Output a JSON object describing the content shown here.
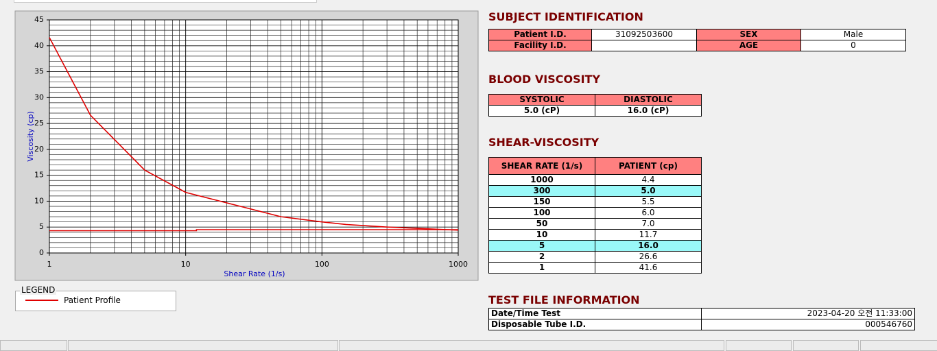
{
  "chart_data": {
    "type": "line",
    "xlabel": "Shear Rate (1/s)",
    "ylabel": "Viscosity (cp)",
    "xlim": [
      1,
      1000
    ],
    "xticks": [
      1,
      10,
      100,
      1000
    ],
    "xscale": "log",
    "ylim": [
      0,
      45
    ],
    "yticks": [
      0,
      5,
      10,
      15,
      20,
      25,
      30,
      35,
      40,
      45
    ],
    "grid": true,
    "minor_grid": true,
    "series": [
      {
        "name": "Patient Profile",
        "color": "#e00000",
        "x": [
          1,
          2,
          5,
          10,
          50,
          100,
          150,
          300,
          1000
        ],
        "values": [
          41.6,
          26.6,
          16.0,
          11.7,
          7.0,
          6.0,
          5.5,
          5.0,
          4.4
        ]
      },
      {
        "color": "#e00000",
        "x": [
          1,
          12,
          12,
          1000
        ],
        "values": [
          4.3,
          4.3,
          4.5,
          4.5
        ]
      }
    ]
  },
  "legend": {
    "title": "LEGEND"
  },
  "subject": {
    "title": "SUBJECT IDENTIFICATION",
    "rows": [
      [
        "Patient I.D.",
        "31092503600",
        "SEX",
        "Male"
      ],
      [
        "Facility I.D.",
        null,
        "AGE",
        "0"
      ]
    ]
  },
  "blood": {
    "title": "BLOOD VISCOSITY",
    "headers": [
      "SYSTOLIC",
      "DIASTOLIC"
    ],
    "values": [
      "5.0 (cP)",
      "16.0 (cP)"
    ]
  },
  "shear": {
    "title": "SHEAR-VISCOSITY",
    "headers": [
      "SHEAR RATE (1/s)",
      "PATIENT (cp)"
    ],
    "rows": [
      {
        "rate": "1000",
        "patient": "4.4"
      },
      {
        "rate": "300",
        "patient": "5.0",
        "highlight": true
      },
      {
        "rate": "150",
        "patient": "5.5"
      },
      {
        "rate": "100",
        "patient": "6.0"
      },
      {
        "rate": "50",
        "patient": "7.0"
      },
      {
        "rate": "10",
        "patient": "11.7"
      },
      {
        "rate": "5",
        "patient": "16.0",
        "highlight": true
      },
      {
        "rate": "2",
        "patient": "26.6"
      },
      {
        "rate": "1",
        "patient": "41.6"
      }
    ]
  },
  "test_file": {
    "title": "TEST FILE INFORMATION",
    "rows": [
      [
        "Date/Time Test",
        "2023-04-20   오전 11:33:00"
      ],
      [
        "Disposable Tube I.D.",
        "000546760"
      ]
    ]
  }
}
